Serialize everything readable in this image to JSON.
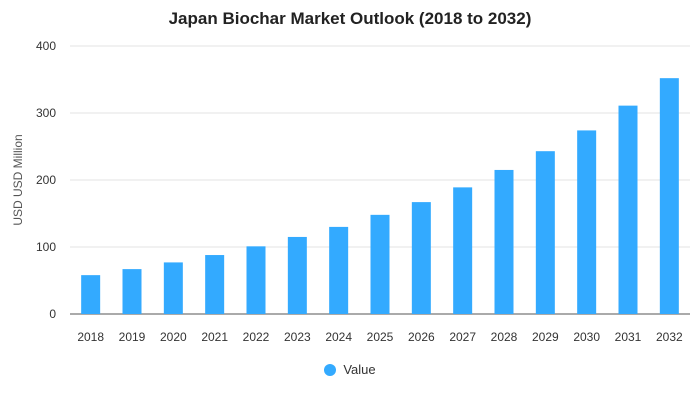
{
  "chart_data": {
    "type": "bar",
    "title": "Japan Biochar Market Outlook (2018 to 2032)",
    "xlabel": "",
    "ylabel": "USD USD Million",
    "categories": [
      "2018",
      "2019",
      "2020",
      "2021",
      "2022",
      "2023",
      "2024",
      "2025",
      "2026",
      "2027",
      "2028",
      "2029",
      "2030",
      "2031",
      "2032"
    ],
    "series": [
      {
        "name": "Value",
        "color": "#33aaff",
        "values": [
          58,
          67,
          77,
          88,
          101,
          115,
          130,
          148,
          167,
          189,
          215,
          243,
          274,
          311,
          352
        ]
      }
    ],
    "ylim": [
      0,
      400
    ],
    "yticks": [
      0,
      100,
      200,
      300,
      400
    ],
    "grid": true,
    "legend_position": "bottom-center"
  }
}
